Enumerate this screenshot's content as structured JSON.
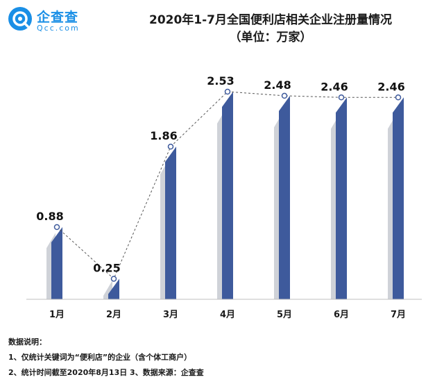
{
  "logo": {
    "brand": "企查查",
    "domain": "Qcc.com",
    "icon": "magnifier-q-icon",
    "color": "#1a8fe6"
  },
  "title_line1": "2020年1-7月全国便利店相关企业注册量情况",
  "title_line2": "（单位：万家）",
  "chart_data": {
    "type": "bar",
    "categories": [
      "1月",
      "2月",
      "3月",
      "4月",
      "5月",
      "6月",
      "7月"
    ],
    "values": [
      0.88,
      0.25,
      1.86,
      2.53,
      2.48,
      2.46,
      2.46
    ],
    "ylim": [
      0,
      2.53
    ],
    "grid": false,
    "legend": "none",
    "bar_color": "#3e5a9c",
    "shadow_color": "#cfd2d8",
    "line_style": "dashed",
    "line_color": "#555555"
  },
  "notes": {
    "heading": "数据说明：",
    "line1": "1、仅统计关键词为“便利店”的企业（含个体工商户）",
    "line2": "2、统计时间截至2020年8月13日 3、数据来源：企查查"
  }
}
